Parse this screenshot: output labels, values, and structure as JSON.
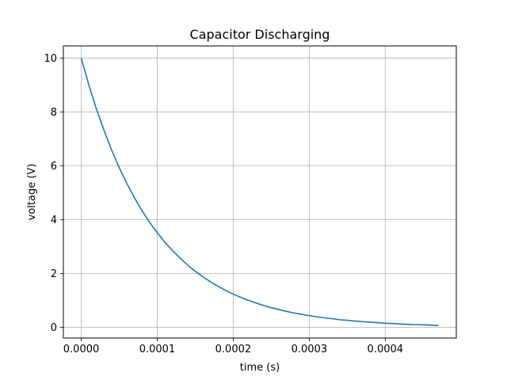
{
  "chart_data": {
    "type": "line",
    "title": "Capacitor Discharging",
    "xlabel": "time (s)",
    "ylabel": "voltage (V)",
    "xlim": [
      -2.35e-05,
      0.0004935
    ],
    "ylim": [
      -0.4,
      10.45
    ],
    "xticks": [
      0.0,
      0.0001,
      0.0002,
      0.0003,
      0.0004
    ],
    "xtick_labels": [
      "0.0000",
      "0.0001",
      "0.0002",
      "0.0003",
      "0.0004"
    ],
    "yticks": [
      0,
      2,
      4,
      6,
      8,
      10
    ],
    "ytick_labels": [
      "0",
      "2",
      "4",
      "6",
      "8",
      "10"
    ],
    "grid": true,
    "series": [
      {
        "color": "#1f77b4",
        "x": [
          0.0,
          1e-05,
          2e-05,
          3e-05,
          4e-05,
          5e-05,
          6e-05,
          7e-05,
          8e-05,
          9e-05,
          0.0001,
          0.00011,
          0.00012,
          0.00013,
          0.00014,
          0.00015,
          0.00016,
          0.00017,
          0.00018,
          0.00019,
          0.0002,
          0.00021,
          0.00022,
          0.00023,
          0.00024,
          0.00025,
          0.00026,
          0.00027,
          0.00028,
          0.00029,
          0.0003,
          0.00031,
          0.00032,
          0.00033,
          0.00034,
          0.00035,
          0.00036,
          0.00037,
          0.00038,
          0.00039,
          0.0004,
          0.00041,
          0.00042,
          0.00043,
          0.00044,
          0.00045,
          0.00046,
          0.00047
        ],
        "y": [
          10.0,
          9.0,
          8.11,
          7.31,
          6.58,
          5.93,
          5.34,
          4.81,
          4.33,
          3.9,
          3.51,
          3.16,
          2.85,
          2.57,
          2.31,
          2.08,
          1.88,
          1.69,
          1.52,
          1.37,
          1.23,
          1.11,
          1.0,
          0.9,
          0.81,
          0.73,
          0.66,
          0.59,
          0.53,
          0.48,
          0.43,
          0.39,
          0.35,
          0.32,
          0.28,
          0.26,
          0.23,
          0.21,
          0.19,
          0.17,
          0.15,
          0.14,
          0.12,
          0.11,
          0.1,
          0.09,
          0.08,
          0.07
        ]
      }
    ]
  }
}
